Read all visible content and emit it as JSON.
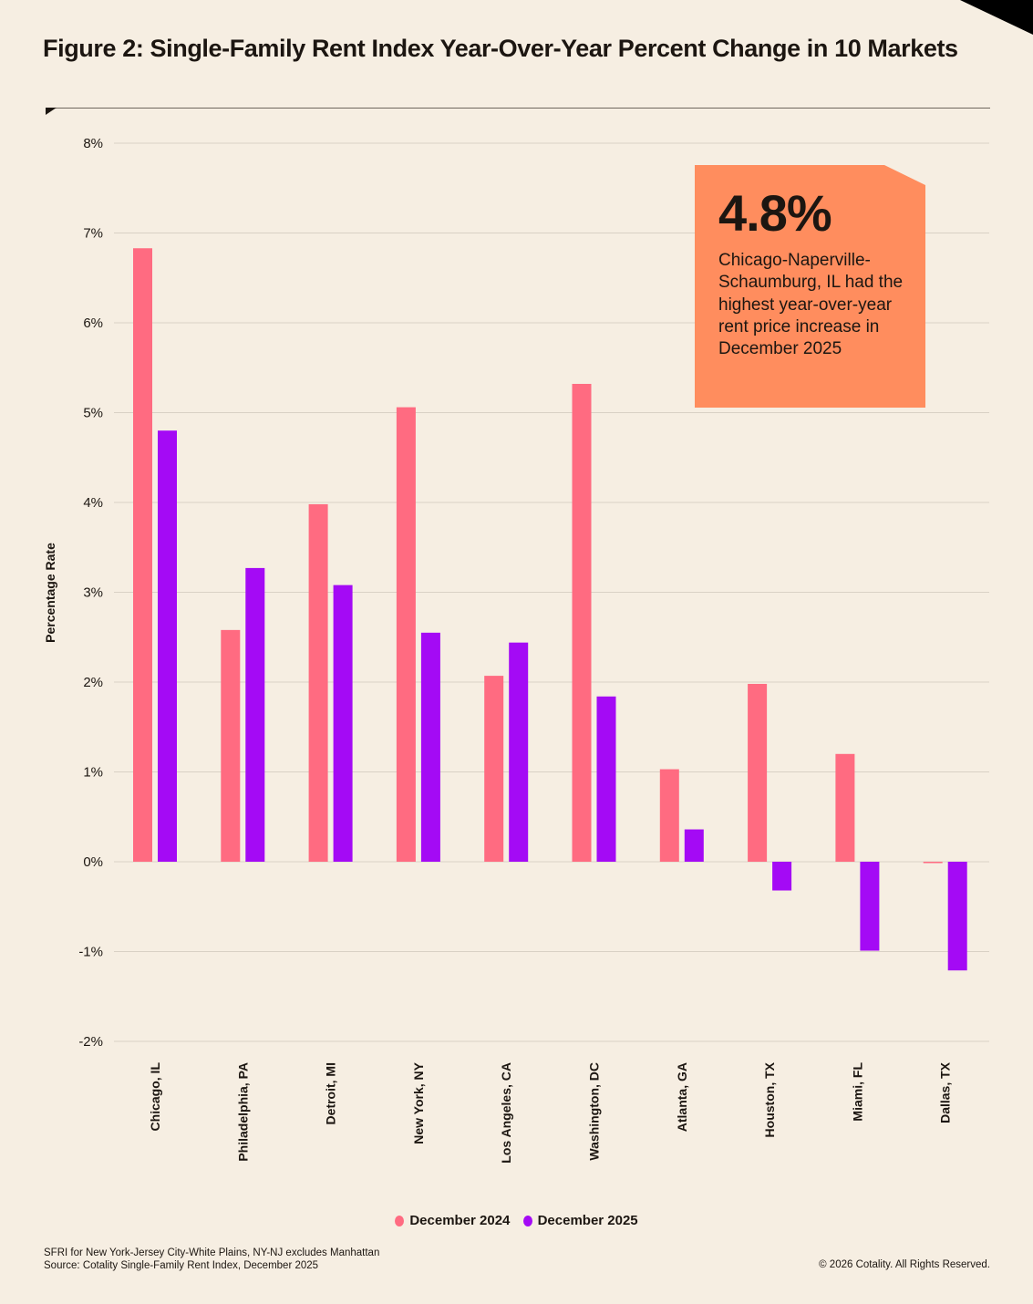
{
  "title": "Figure 2: Single-Family Rent Index Year-Over-Year Percent Change in 10 Markets",
  "callout": {
    "value": "4.8%",
    "text": "Chicago-Naperville-Schaumburg, IL had the highest year-over-year rent price increase in December 2025"
  },
  "notes": [
    "SFRI for New York-Jersey City-White Plains, NY-NJ excludes Manhattan",
    "Source: Cotality Single-Family Rent Index, December 2025"
  ],
  "copyright": "© 2026 Cotality. All Rights Reserved.",
  "chart_data": {
    "type": "bar",
    "title": "Figure 2: Single-Family Rent Index Year-Over-Year Percent Change in 10 Markets",
    "xlabel": "",
    "ylabel": "Percentage Rate",
    "ylim": [
      -2,
      8
    ],
    "yticks": [
      "-2%",
      "-1%",
      "0%",
      "1%",
      "2%",
      "3%",
      "4%",
      "5%",
      "6%",
      "7%",
      "8%"
    ],
    "grid": true,
    "legend": "bottom",
    "categories": [
      "Chicago, IL",
      "Philadelphia, PA",
      "Detroit, MI",
      "New York, NY",
      "Los Angeles, CA",
      "Washington, DC",
      "Atlanta, GA",
      "Houston, TX",
      "Miami, FL",
      "Dallas, TX"
    ],
    "series": [
      {
        "name": "December 2024",
        "color": "#ff6b81",
        "values": [
          6.83,
          2.58,
          3.98,
          5.06,
          2.07,
          5.32,
          1.03,
          1.98,
          1.2,
          -0.01
        ]
      },
      {
        "name": "December 2025",
        "color": "#a40af5",
        "values": [
          4.8,
          3.27,
          3.08,
          2.55,
          2.44,
          1.84,
          0.36,
          -0.32,
          -0.99,
          -1.21
        ]
      }
    ]
  }
}
